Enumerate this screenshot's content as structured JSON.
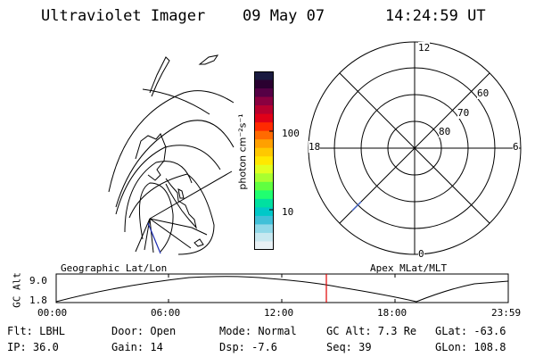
{
  "header": {
    "instrument": "Ultraviolet Imager",
    "date": "09 May 07",
    "time": "14:24:59 UT"
  },
  "colorbar": {
    "unit_label": "photon cm⁻²s⁻¹",
    "tick_high": "100",
    "tick_low": "10",
    "colors": [
      "#1a1a40",
      "#2a0030",
      "#550045",
      "#8a0040",
      "#b8002e",
      "#e00018",
      "#ff2a00",
      "#ff6a00",
      "#ffa000",
      "#ffc800",
      "#ffe800",
      "#e0ff20",
      "#a8ff30",
      "#60ff40",
      "#20ff70",
      "#00e0a0",
      "#00c8c8",
      "#40c0d8",
      "#90d8e8",
      "#c8e8f0",
      "#e8f0f4"
    ]
  },
  "left_map": {
    "label": "Geographic Lat/Lon"
  },
  "polar_plot": {
    "label": "Apex MLat/MLT",
    "mlt_top": "12",
    "mlt_left": "18",
    "mlt_right": "6",
    "mlt_bottom": "0",
    "lat_60": "60",
    "lat_70": "70",
    "lat_80": "80"
  },
  "alt_plot": {
    "ylabel": "GC Alt",
    "y_high": "9.0",
    "y_low": "1.8",
    "x_ticks": [
      "00:00",
      "06:00",
      "12:00",
      "18:00",
      "23:59"
    ]
  },
  "info": {
    "flt": "Flt: LBHL",
    "ip": "IP: 36.0",
    "door": "Door: Open",
    "gain": "Gain: 14",
    "mode": "Mode: Normal",
    "dsp": "Dsp:   -7.6",
    "gc_alt": "GC Alt: 7.3 Re",
    "seq": "Seq: 39",
    "glat": "GLat: -63.6",
    "glon": "GLon: 108.8"
  }
}
